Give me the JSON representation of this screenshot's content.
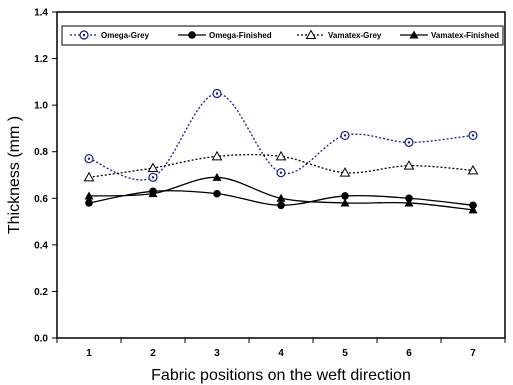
{
  "chart_data": {
    "type": "line",
    "title": "",
    "xlabel": "Fabric positions on the weft direction",
    "ylabel": "Thickness (mm )",
    "x": [
      1,
      2,
      3,
      4,
      5,
      6,
      7
    ],
    "xlim": [
      0.5,
      7.5
    ],
    "ylim": [
      0.0,
      1.4
    ],
    "yticks": [
      0.0,
      0.2,
      0.4,
      0.6,
      0.8,
      1.0,
      1.2,
      1.4
    ],
    "ytick_labels": [
      "0.0",
      "0.2",
      "0.4",
      "0.6",
      "0.8",
      "1.0",
      "1.2",
      "1.4"
    ],
    "xtick_labels": [
      "1",
      "2",
      "3",
      "4",
      "5",
      "6",
      "7"
    ],
    "grid": false,
    "legend_position": "top",
    "series": [
      {
        "name": "Omega-Grey",
        "values": [
          0.77,
          0.69,
          1.05,
          0.71,
          0.87,
          0.84,
          0.87
        ],
        "marker": "circle-dot",
        "line": "dotted",
        "color": "#1a1a8c"
      },
      {
        "name": "Omega-Finished",
        "values": [
          0.58,
          0.63,
          0.62,
          0.57,
          0.61,
          0.6,
          0.57
        ],
        "marker": "filled-circle",
        "line": "solid",
        "color": "#000000"
      },
      {
        "name": "Vamatex-Grey",
        "values": [
          0.69,
          0.73,
          0.78,
          0.78,
          0.71,
          0.74,
          0.72
        ],
        "marker": "open-triangle",
        "line": "dotted",
        "color": "#000000"
      },
      {
        "name": "Vamatex-Finished",
        "values": [
          0.61,
          0.62,
          0.69,
          0.6,
          0.58,
          0.58,
          0.55
        ],
        "marker": "filled-triangle",
        "line": "solid",
        "color": "#000000"
      }
    ]
  }
}
